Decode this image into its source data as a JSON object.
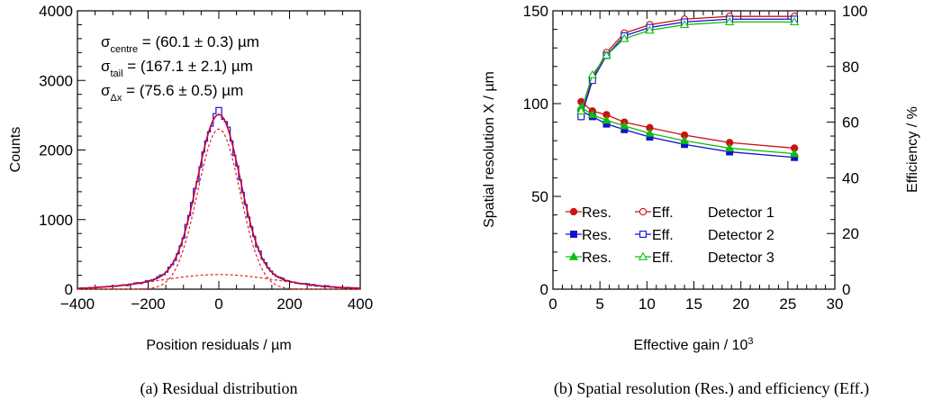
{
  "colors": {
    "residual_hist": "#2222cc",
    "fit_total": "#cc0033",
    "fit_component": "#dd2222",
    "det1": "#cc1111",
    "det2": "#1111cc",
    "det3": "#11bb11"
  },
  "chart_data": [
    {
      "type": "histogram",
      "xlabel_prefix": "Position residuals / ",
      "xlabel_unit": "µm",
      "ylabel": "Counts",
      "xlim": [
        -400,
        400
      ],
      "ylim": [
        0,
        4000
      ],
      "xticks": [
        "−400",
        "−200",
        "0",
        "200",
        "400"
      ],
      "yticks": [
        "0",
        "1000",
        "2000",
        "3000",
        "4000"
      ],
      "caption": "(a) Residual distribution",
      "annotations": [
        {
          "sym": "σ",
          "sub": "centre",
          "text": " = (60.1 ± 0.3) µm"
        },
        {
          "sym": "σ",
          "sub": "tail",
          "text": " = (167.1 ± 2.1) µm"
        },
        {
          "sym": "σ",
          "sub": "Δx",
          "text": " = (75.6 ± 0.5) µm"
        }
      ],
      "model": {
        "centre": {
          "amplitude": 2300,
          "mean": 0,
          "sigma": 60.1
        },
        "tail": {
          "amplitude": 210,
          "mean": 0,
          "sigma": 167.1
        }
      },
      "peak_counts": 2610,
      "bin_width": 8
    },
    {
      "type": "line",
      "xlabel": "Effective gain / 10",
      "xlabel_sup": "3",
      "ylabel_left": "Spatial resolution X / µm",
      "ylabel_right": "Efficiency / %",
      "xlim": [
        0,
        30
      ],
      "ylim_left": [
        0,
        150
      ],
      "ylim_right": [
        0,
        100
      ],
      "xticks": [
        "0",
        "5",
        "10",
        "15",
        "20",
        "25",
        "30"
      ],
      "yticks_left": [
        "0",
        "50",
        "100",
        "150"
      ],
      "yticks_right": [
        "0",
        "20",
        "40",
        "60",
        "80",
        "100"
      ],
      "caption": "(b) Spatial resolution (Res.) and efficiency (Eff.)",
      "x": [
        3.0,
        4.2,
        5.7,
        7.6,
        10.3,
        14.0,
        18.8,
        25.7
      ],
      "series": [
        {
          "name": "Detector 1",
          "res_label": "Res.",
          "eff_label": "Eff.",
          "color": "#cc1111",
          "marker": "circle",
          "resolution": [
            101,
            96,
            94,
            90,
            87,
            83,
            79,
            76
          ],
          "efficiency": [
            62,
            76,
            85,
            92,
            95,
            97,
            98,
            98
          ]
        },
        {
          "name": "Detector 2",
          "res_label": "Res.",
          "eff_label": "Eff.",
          "color": "#1111cc",
          "marker": "square",
          "resolution": [
            96,
            93,
            89,
            86,
            82,
            78,
            74,
            71
          ],
          "efficiency": [
            62,
            75,
            84,
            91,
            94,
            96,
            97,
            97
          ]
        },
        {
          "name": "Detector 3",
          "res_label": "Res.",
          "eff_label": "Eff.",
          "color": "#11bb11",
          "marker": "triangle",
          "resolution": [
            98,
            94,
            91,
            88,
            84,
            80,
            76,
            73
          ],
          "efficiency": [
            64,
            77,
            84,
            90,
            93,
            95,
            96,
            96
          ]
        }
      ]
    }
  ]
}
